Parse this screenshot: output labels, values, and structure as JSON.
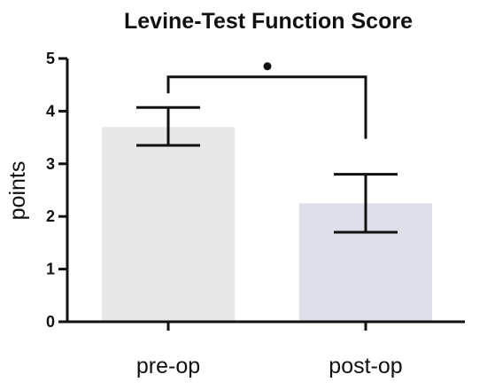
{
  "chart_data": {
    "type": "bar",
    "title": "Levine-Test Function Score",
    "xlabel": "",
    "ylabel": "points",
    "categories": [
      "pre-op",
      "post-op"
    ],
    "values": [
      3.7,
      2.25
    ],
    "error_low": [
      3.35,
      1.7
    ],
    "error_high": [
      4.07,
      2.8
    ],
    "bar_colors": [
      "#e8e8e8",
      "#dde0e8"
    ],
    "ylim": [
      0,
      5
    ],
    "yticks": [
      "0",
      "1",
      "2",
      "3",
      "4",
      "5"
    ],
    "grid": false,
    "significance": {
      "between": [
        "pre-op",
        "post-op"
      ],
      "marker": "•",
      "level": 4.65
    }
  }
}
